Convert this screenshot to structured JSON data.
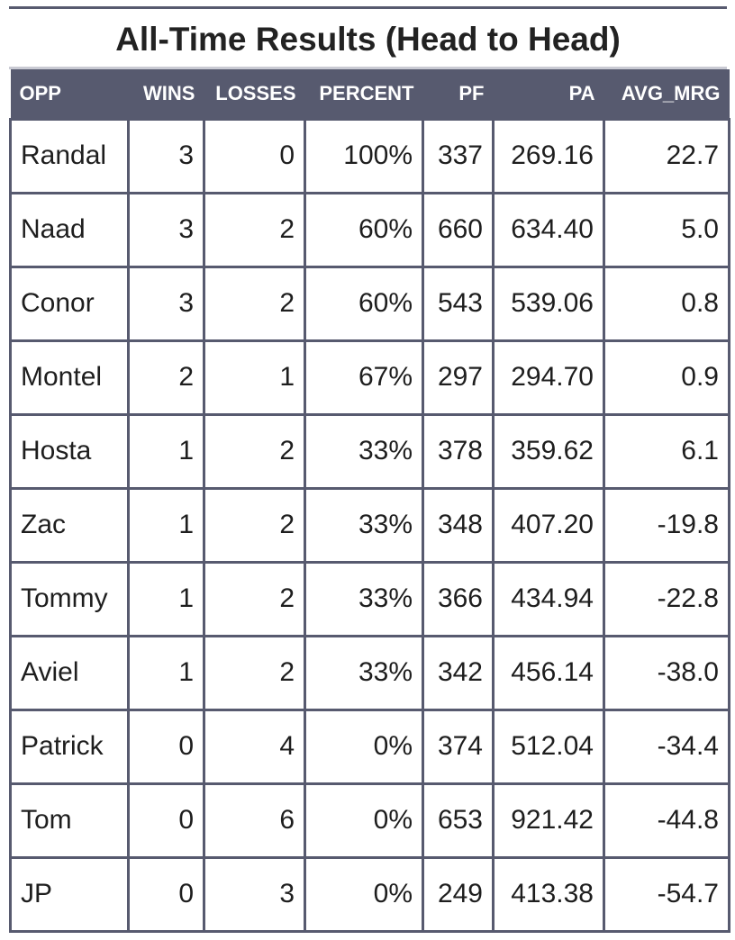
{
  "chart_data": {
    "type": "table",
    "title": "All-Time Results (Head to Head)",
    "columns": [
      "OPP",
      "WINS",
      "LOSSES",
      "PERCENT",
      "PF",
      "PA",
      "AVG_MRG"
    ],
    "rows": [
      [
        "Randal",
        "3",
        "0",
        "100%",
        "337",
        "269.16",
        "22.7"
      ],
      [
        "Naad",
        "3",
        "2",
        "60%",
        "660",
        "634.40",
        "5.0"
      ],
      [
        "Conor",
        "3",
        "2",
        "60%",
        "543",
        "539.06",
        "0.8"
      ],
      [
        "Montel",
        "2",
        "1",
        "67%",
        "297",
        "294.70",
        "0.9"
      ],
      [
        "Hosta",
        "1",
        "2",
        "33%",
        "378",
        "359.62",
        "6.1"
      ],
      [
        "Zac",
        "1",
        "2",
        "33%",
        "348",
        "407.20",
        "-19.8"
      ],
      [
        "Tommy",
        "1",
        "2",
        "33%",
        "366",
        "434.94",
        "-22.8"
      ],
      [
        "Aviel",
        "1",
        "2",
        "33%",
        "342",
        "456.14",
        "-38.0"
      ],
      [
        "Patrick",
        "0",
        "4",
        "0%",
        "374",
        "512.04",
        "-34.4"
      ],
      [
        "Tom",
        "0",
        "6",
        "0%",
        "653",
        "921.42",
        "-44.8"
      ],
      [
        "JP",
        "0",
        "3",
        "0%",
        "249",
        "413.38",
        "-54.7"
      ]
    ],
    "colors": {
      "header_background": "#575a6f",
      "header_text": "#ffffff",
      "grid_lines": "#575a6f"
    }
  }
}
